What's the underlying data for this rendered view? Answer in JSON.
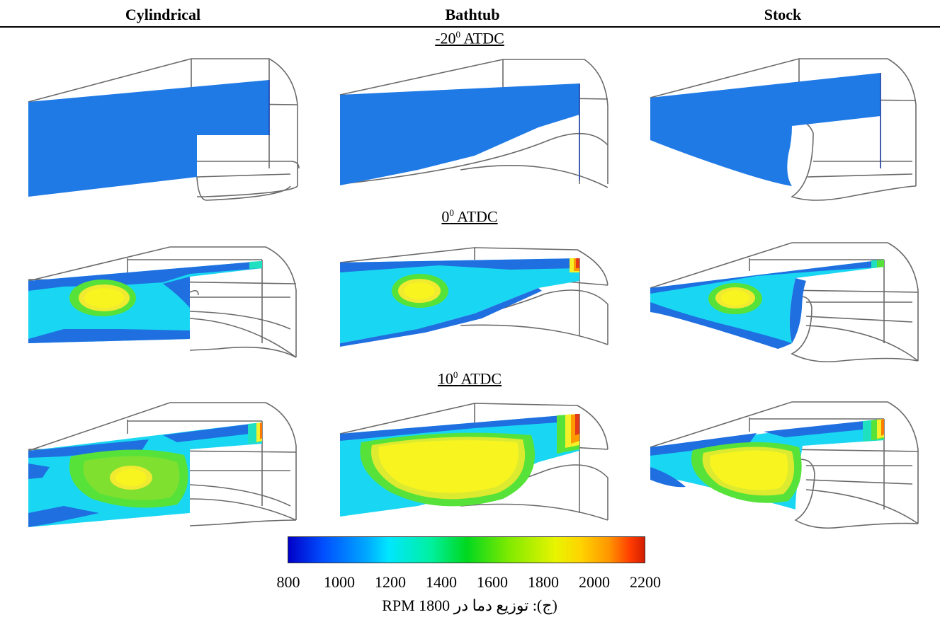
{
  "columns": [
    "Cylindrical",
    "Bathtub",
    "Stock"
  ],
  "time_labels": [
    {
      "value": "-20",
      "sup": "0",
      "unit": " ATDC"
    },
    {
      "value": "",
      "sup": "0",
      "unit": " ATDC",
      "prefix": "0"
    },
    {
      "value": "10",
      "sup": "0",
      "unit": " ATDC"
    }
  ],
  "time_text": {
    "t1_main": "-20",
    "t2_main": "0",
    "t3_main": "10",
    "sup": "0",
    "unit": " ATDC"
  },
  "colorbar": {
    "ticks": [
      "800",
      "1000",
      "1200",
      "1400",
      "1600",
      "1800",
      "2000",
      "2200"
    ],
    "min": 800,
    "max": 2200,
    "colors": [
      "#0000c8",
      "#0050ff",
      "#00a8ff",
      "#00e6ff",
      "#00f0a0",
      "#00d820",
      "#80ea00",
      "#e8f400",
      "#ffd400",
      "#ff9600",
      "#ff3c00",
      "#d21e00"
    ]
  },
  "caption": "(ج): توزیع دما در 1800 RPM",
  "palette": {
    "cold": "#1f6fe0",
    "cool": "#19d7f2",
    "mid": "#57e23a",
    "warm": "#f5f028",
    "hot": "#e33b18",
    "outline": "#5a5a5a"
  }
}
